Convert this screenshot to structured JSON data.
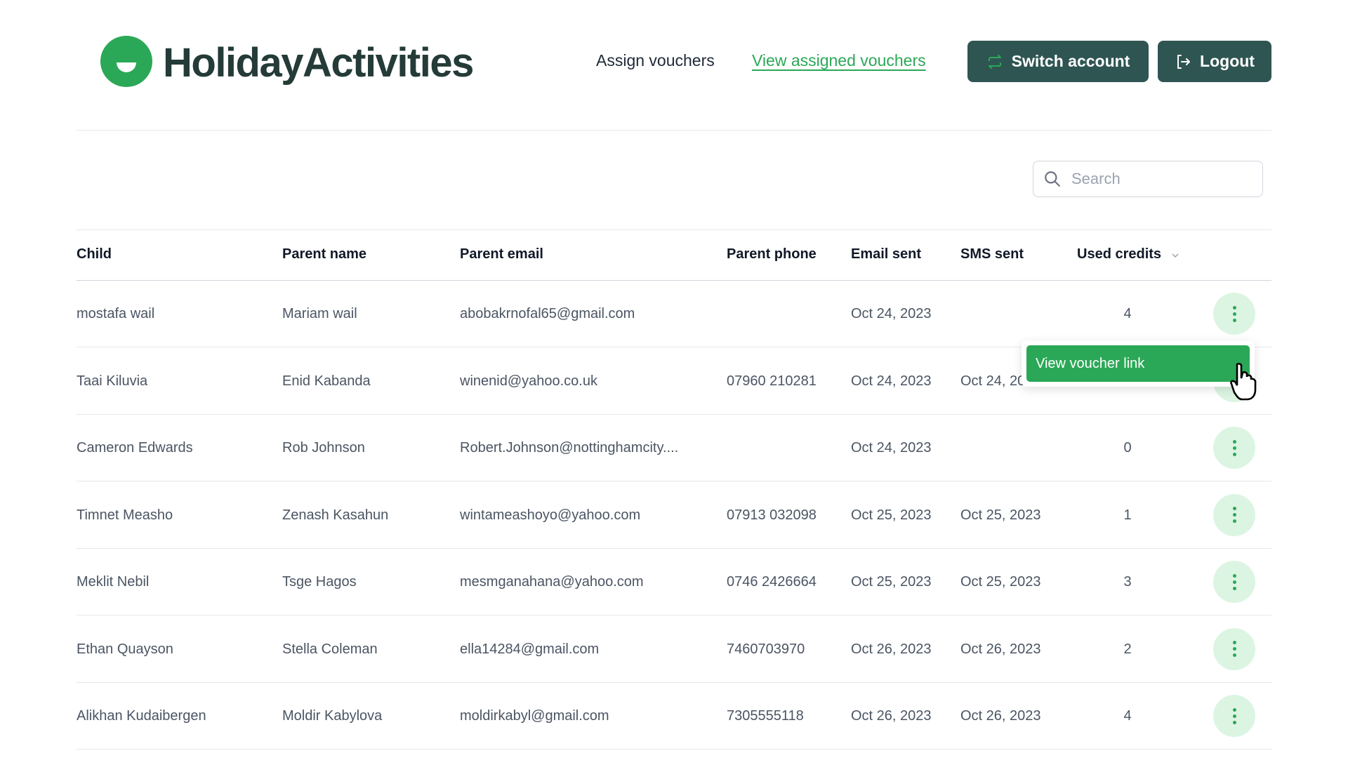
{
  "header": {
    "logo_text": "HolidayActivities",
    "nav": {
      "assign": "Assign vouchers",
      "view_assigned": "View assigned vouchers"
    },
    "switch_account": "Switch account",
    "logout": "Logout"
  },
  "search": {
    "placeholder": "Search",
    "value": ""
  },
  "table": {
    "columns": [
      "Child",
      "Parent name",
      "Parent email",
      "Parent phone",
      "Email sent",
      "SMS sent",
      "Used credits"
    ],
    "rows": [
      [
        "mostafa wail",
        "Mariam wail",
        "abobakrnofal65@gmail.com",
        "",
        "Oct 24, 2023",
        "",
        "4"
      ],
      [
        "Taai Kiluvia",
        "Enid Kabanda",
        "winenid@yahoo.co.uk",
        "07960 210281",
        "Oct 24, 2023",
        "Oct 24, 2023",
        ""
      ],
      [
        "Cameron Edwards",
        "Rob Johnson",
        "Robert.Johnson@nottinghamcity....",
        "",
        "Oct 24, 2023",
        "",
        "0"
      ],
      [
        "Timnet Measho",
        "Zenash Kasahun",
        "wintameashoyo@yahoo.com",
        "07913 032098",
        "Oct 25, 2023",
        "Oct 25, 2023",
        "1"
      ],
      [
        "Meklit Nebil",
        "Tsge Hagos",
        "mesmganahana@yahoo.com",
        "0746 2426664",
        "Oct 25, 2023",
        "Oct 25, 2023",
        "3"
      ],
      [
        "Ethan Quayson",
        "Stella Coleman",
        "ella14284@gmail.com",
        "7460703970",
        "Oct 26, 2023",
        "Oct 26, 2023",
        "2"
      ],
      [
        "Alikhan Kudaibergen",
        "Moldir Kabylova",
        "moldirkabyl@gmail.com",
        "7305555118",
        "Oct 26, 2023",
        "Oct 26, 2023",
        "4"
      ]
    ]
  },
  "row_menu": {
    "view_voucher_link": "View voucher link"
  },
  "colors": {
    "brand_green": "#2ba857",
    "dark_button": "#2f5552",
    "action_bg": "#dcf5e3"
  }
}
